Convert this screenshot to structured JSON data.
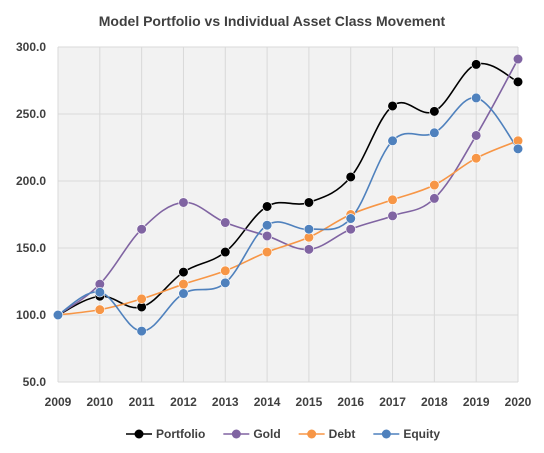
{
  "chart_data": {
    "type": "line",
    "title": "Model Portfolio vs Individual Asset Class Movement",
    "xlabel": "",
    "ylabel": "",
    "x": [
      "2009",
      "2010",
      "2011",
      "2012",
      "2013",
      "2014",
      "2015",
      "2016",
      "2017",
      "2018",
      "2019",
      "2020"
    ],
    "ylim": [
      50,
      300
    ],
    "yticks": [
      "50.0",
      "100.0",
      "150.0",
      "200.0",
      "250.0",
      "300.0"
    ],
    "grid": "horizontal",
    "smooth": true,
    "legend_position": "bottom",
    "series": [
      {
        "name": "Portfolio",
        "color": "#000000",
        "values": [
          100,
          114,
          106,
          132,
          147,
          181,
          184,
          203,
          256,
          252,
          287,
          274
        ]
      },
      {
        "name": "Gold",
        "color": "#8064A2",
        "values": [
          100,
          123,
          164,
          184,
          169,
          159,
          149,
          164,
          174,
          187,
          234,
          291
        ]
      },
      {
        "name": "Debt",
        "color": "#F79646",
        "values": [
          100,
          104,
          112,
          123,
          133,
          147,
          158,
          175,
          186,
          197,
          217,
          230
        ]
      },
      {
        "name": "Equity",
        "color": "#4F81BD",
        "values": [
          100,
          117,
          88,
          116,
          124,
          167,
          164,
          172,
          230,
          236,
          262,
          224
        ]
      }
    ]
  }
}
